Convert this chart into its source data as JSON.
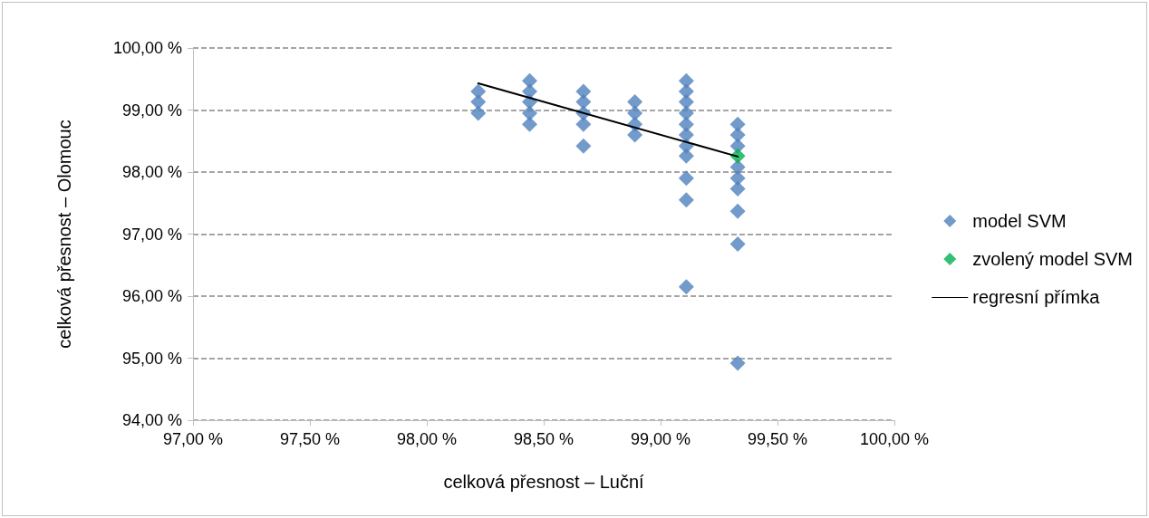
{
  "chart_data": {
    "type": "scatter",
    "xlabel": "celková přesnost – Luční",
    "ylabel": "celková přesnost – Olomouc",
    "xlim": [
      97,
      100
    ],
    "xticks": [
      {
        "value": 97,
        "label": "97,00 %"
      },
      {
        "value": 97.5,
        "label": "97,50 %"
      },
      {
        "value": 98,
        "label": "98,00 %"
      },
      {
        "value": 98.5,
        "label": "98,50 %"
      },
      {
        "value": 99,
        "label": "99,00 %"
      },
      {
        "value": 99.5,
        "label": "99,50 %"
      },
      {
        "value": 100,
        "label": "100,00 %"
      }
    ],
    "ylim": [
      94,
      100
    ],
    "yticks": [
      {
        "value": 94,
        "label": "94,00 %"
      },
      {
        "value": 95,
        "label": "95,00 %"
      },
      {
        "value": 96,
        "label": "96,00 %"
      },
      {
        "value": 97,
        "label": "97,00 %"
      },
      {
        "value": 98,
        "label": "98,00 %"
      },
      {
        "value": 99,
        "label": "99,00 %"
      },
      {
        "value": 100,
        "label": "100,00 %"
      }
    ],
    "grid": "y",
    "legend": "right",
    "marker": "diamond",
    "series": [
      {
        "name": "model SVM",
        "color": "#4f81bd",
        "x": [
          98.22,
          98.22,
          98.22,
          98.44,
          98.44,
          98.44,
          98.44,
          98.44,
          98.67,
          98.67,
          98.67,
          98.67,
          98.67,
          98.89,
          98.89,
          98.89,
          98.89,
          99.11,
          99.11,
          99.11,
          99.11,
          99.11,
          99.11,
          99.11,
          99.11,
          99.11,
          99.11,
          99.11,
          99.33,
          99.33,
          99.33,
          99.33,
          99.33,
          99.33,
          99.33,
          99.33,
          99.33
        ],
        "values": [
          99.3,
          99.13,
          98.95,
          99.47,
          99.3,
          99.13,
          98.95,
          98.77,
          99.3,
          99.13,
          98.95,
          98.77,
          98.42,
          99.13,
          98.95,
          98.77,
          98.6,
          99.47,
          99.3,
          99.13,
          98.95,
          98.77,
          98.6,
          98.42,
          98.26,
          97.9,
          97.55,
          96.15,
          98.77,
          98.6,
          98.42,
          98.08,
          97.9,
          97.73,
          97.37,
          96.84,
          94.92
        ]
      },
      {
        "name": "zvolený model SVM",
        "color": "#00b050",
        "x": [
          99.33
        ],
        "values": [
          98.26
        ]
      },
      {
        "name": "regresní přímka",
        "type": "line",
        "color": "#000000",
        "marker": "none",
        "line_style": "solid",
        "x": [
          98.22,
          99.33
        ],
        "values": [
          99.43,
          98.25
        ]
      }
    ]
  }
}
